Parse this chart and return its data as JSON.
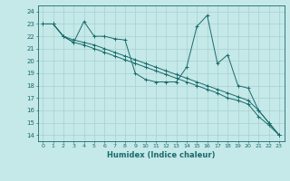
{
  "title": "",
  "xlabel": "Humidex (Indice chaleur)",
  "ylabel": "",
  "xlim": [
    -0.5,
    23.5
  ],
  "ylim": [
    13.5,
    24.5
  ],
  "xticks": [
    0,
    1,
    2,
    3,
    4,
    5,
    6,
    7,
    8,
    9,
    10,
    11,
    12,
    13,
    14,
    15,
    16,
    17,
    18,
    19,
    20,
    21,
    22,
    23
  ],
  "yticks": [
    14,
    15,
    16,
    17,
    18,
    19,
    20,
    21,
    22,
    23,
    24
  ],
  "bg_color": "#c5e8e8",
  "grid_color": "#a8d0d0",
  "line_color": "#1a6b6b",
  "series1_x": [
    0,
    1,
    2,
    3,
    4,
    5,
    6,
    7,
    8,
    9,
    10,
    11,
    12,
    13,
    14,
    15,
    16,
    17,
    18,
    19,
    20,
    21,
    22,
    23
  ],
  "series1_y": [
    23.0,
    23.0,
    22.0,
    21.5,
    23.2,
    22.0,
    22.0,
    21.8,
    21.7,
    19.0,
    18.5,
    18.3,
    18.3,
    18.3,
    19.5,
    22.8,
    23.7,
    19.8,
    20.5,
    18.0,
    17.8,
    16.0,
    15.0,
    14.0
  ],
  "series2_x": [
    0,
    1,
    2,
    3,
    4,
    5,
    6,
    7,
    8,
    9,
    10,
    11,
    12,
    13,
    14,
    15,
    16,
    17,
    18,
    19,
    20,
    21,
    22,
    23
  ],
  "series2_y": [
    23.0,
    23.0,
    22.0,
    21.7,
    21.5,
    21.3,
    21.0,
    20.7,
    20.4,
    20.1,
    19.8,
    19.5,
    19.2,
    18.9,
    18.6,
    18.3,
    18.0,
    17.7,
    17.4,
    17.1,
    16.8,
    16.0,
    15.0,
    14.0
  ],
  "series3_x": [
    0,
    1,
    2,
    3,
    4,
    5,
    6,
    7,
    8,
    9,
    10,
    11,
    12,
    13,
    14,
    15,
    16,
    17,
    18,
    19,
    20,
    21,
    22,
    23
  ],
  "series3_y": [
    23.0,
    23.0,
    22.0,
    21.5,
    21.3,
    21.0,
    20.7,
    20.4,
    20.1,
    19.8,
    19.5,
    19.2,
    18.9,
    18.6,
    18.3,
    18.0,
    17.7,
    17.4,
    17.0,
    16.8,
    16.5,
    15.5,
    14.8,
    14.0
  ]
}
